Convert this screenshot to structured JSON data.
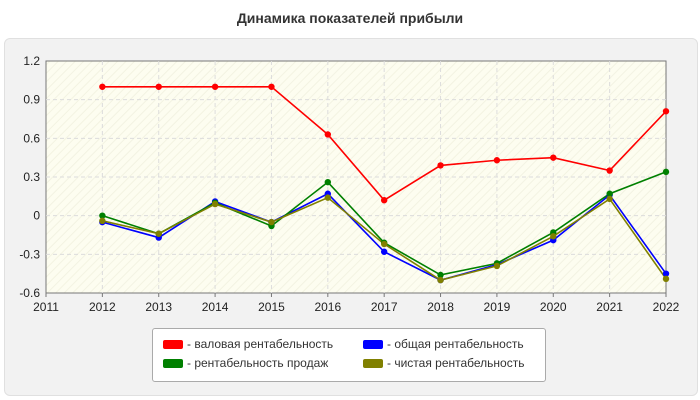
{
  "chart_data": {
    "type": "line",
    "title": "Динамика показателей прибыли",
    "x": [
      2012,
      2013,
      2014,
      2015,
      2016,
      2017,
      2018,
      2019,
      2020,
      2021,
      2022
    ],
    "xlim": [
      2011,
      2022
    ],
    "x_ticks": [
      "2011",
      "2012",
      "2013",
      "2014",
      "2015",
      "2016",
      "2017",
      "2018",
      "2019",
      "2020",
      "2021",
      "2022"
    ],
    "ylim": [
      -0.6,
      1.2
    ],
    "y_ticks": [
      "1.2",
      "0.9",
      "0.6",
      "0.3",
      "0",
      "-0.3",
      "-0.6"
    ],
    "grid": true,
    "legend_position": "bottom",
    "series": [
      {
        "name": "- валовая рентабельность",
        "color": "#ff0000",
        "values": [
          1.0,
          1.0,
          1.0,
          1.0,
          0.63,
          0.12,
          0.39,
          0.43,
          0.45,
          0.35,
          0.81
        ]
      },
      {
        "name": "- общая рентабельность",
        "color": "#0000ff",
        "values": [
          -0.05,
          -0.17,
          0.11,
          -0.05,
          0.17,
          -0.28,
          -0.5,
          -0.38,
          -0.19,
          0.16,
          -0.45
        ]
      },
      {
        "name": "- рентабельность продаж",
        "color": "#008000",
        "values": [
          0.0,
          -0.14,
          0.1,
          -0.08,
          0.26,
          -0.21,
          -0.46,
          -0.37,
          -0.13,
          0.17,
          0.34
        ]
      },
      {
        "name": "- чистая рентабельность",
        "color": "#808000",
        "values": [
          -0.04,
          -0.14,
          0.09,
          -0.05,
          0.14,
          -0.22,
          -0.5,
          -0.39,
          -0.16,
          0.13,
          -0.49
        ]
      }
    ],
    "legend_order": [
      0,
      1,
      2,
      3
    ]
  }
}
